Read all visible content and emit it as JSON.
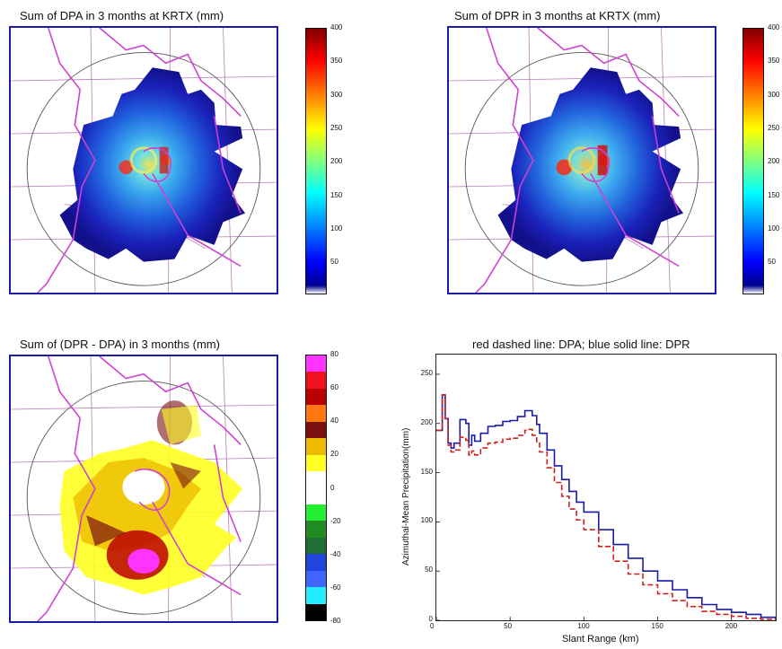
{
  "colors": {
    "frame_blue": "#1c1ca8",
    "state_border": "#d040d0",
    "county_line": "#b87bb8",
    "coast_line": "#e040e0",
    "range_ring": "#555555",
    "dpr_line": "#1a1aa8",
    "dpa_line": "#d02020"
  },
  "panels": {
    "dpa_sum": {
      "title": "Sum of DPA in 3 months at KRTX (mm)"
    },
    "dpr_sum": {
      "title": "Sum of DPR in 3 months at KRTX (mm)"
    },
    "diff": {
      "title": "Sum of (DPR - DPA) in 3 months (mm)"
    },
    "profile": {
      "title": "red dashed line: DPA; blue solid line: DPR"
    }
  },
  "colorbars": {
    "continuous": {
      "type": "jet",
      "ticks": [
        "400",
        "350",
        "300",
        "250",
        "200",
        "150",
        "100",
        "50"
      ],
      "range": [
        0,
        400
      ]
    },
    "diff": {
      "ticks": [
        "80",
        "60",
        "40",
        "20",
        "0",
        "-20",
        "-40",
        "-60",
        "-80"
      ],
      "segments": [
        "#ff33ff",
        "#ee1122",
        "#bb0000",
        "#ff7711",
        "#7a0f0f",
        "#eebb00",
        "#ffff22",
        "#ffffff",
        "#ffffff",
        "#22ee33",
        "#228b22",
        "#1f6e33",
        "#2244dd",
        "#3f66ff",
        "#22eeff",
        "#000000"
      ]
    }
  },
  "chart_data": {
    "type": "line",
    "xlabel": "Slant Range (km)",
    "ylabel": "Azimuthal-Mean Precipitation(mm)",
    "xlim": [
      0,
      230
    ],
    "ylim": [
      0,
      270
    ],
    "xticks": [
      "0",
      "50",
      "100",
      "150",
      "200"
    ],
    "yticks": [
      "0",
      "50",
      "100",
      "150",
      "200",
      "250"
    ],
    "grid": false,
    "series": [
      {
        "name": "DPR",
        "style": "solid",
        "x": [
          0,
          4,
          6,
          8,
          10,
          12,
          16,
          20,
          22,
          24,
          26,
          30,
          35,
          40,
          45,
          50,
          55,
          60,
          62,
          65,
          68,
          70,
          75,
          80,
          85,
          90,
          95,
          100,
          110,
          120,
          130,
          140,
          150,
          160,
          170,
          180,
          190,
          200,
          210,
          220,
          230
        ],
        "y": [
          193,
          229,
          205,
          180,
          175,
          180,
          204,
          200,
          178,
          188,
          182,
          190,
          197,
          198,
          202,
          203,
          207,
          213,
          213,
          208,
          199,
          190,
          173,
          157,
          143,
          131,
          120,
          110,
          92,
          77,
          63,
          50,
          40,
          31,
          23,
          16,
          11,
          8,
          6,
          3,
          0
        ]
      },
      {
        "name": "DPA",
        "style": "dashed",
        "x": [
          0,
          4,
          6,
          8,
          10,
          12,
          16,
          20,
          22,
          24,
          26,
          30,
          35,
          40,
          45,
          50,
          55,
          60,
          62,
          65,
          68,
          70,
          75,
          80,
          85,
          90,
          95,
          100,
          110,
          120,
          130,
          140,
          150,
          160,
          170,
          180,
          190,
          200,
          210,
          220,
          230
        ],
        "y": [
          193,
          229,
          205,
          178,
          171,
          173,
          186,
          183,
          168,
          172,
          168,
          175,
          180,
          181,
          184,
          185,
          188,
          193,
          194,
          188,
          180,
          171,
          155,
          140,
          126,
          113,
          102,
          92,
          75,
          60,
          47,
          36,
          27,
          20,
          14,
          9,
          6,
          4,
          2,
          1,
          0
        ]
      }
    ]
  }
}
